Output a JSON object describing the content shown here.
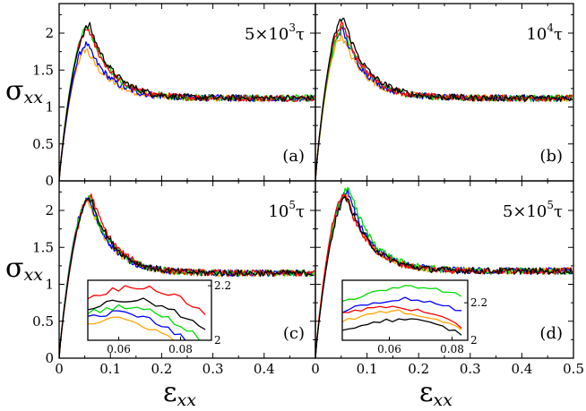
{
  "chart_data": {
    "type": "line",
    "description_free": true,
    "xlabel": "ε",
    "xlabel_sub": "xx",
    "ylabel": "σ",
    "ylabel_sub": "xx",
    "xlim": [
      0,
      0.5
    ],
    "ylim": [
      0,
      2.4
    ],
    "x_ticks": [
      0,
      0.1,
      0.2,
      0.3,
      0.4,
      0.5
    ],
    "x_tick_labels_left": [
      "0",
      "0.1",
      "0.2",
      "0.3",
      "0.4"
    ],
    "x_tick_labels_right": [
      "0",
      "0.1",
      "0.2",
      "0.3",
      "0.4",
      "0.5"
    ],
    "y_ticks": [
      0,
      0.5,
      1,
      1.5,
      2
    ],
    "y_tick_labels": [
      "0",
      "0.5",
      "1",
      "1.5",
      "2"
    ],
    "colors": [
      "#000000",
      "#ff0000",
      "#00dd00",
      "#0000ff",
      "#ffa500"
    ],
    "panels": [
      {
        "id": "a",
        "letter": "(a)",
        "time_main": "5×10",
        "time_sup": "3",
        "time_unit": "τ",
        "peaks": [
          2.1,
          2.05,
          2.08,
          1.85,
          1.78
        ],
        "peak_x": [
          0.06,
          0.058,
          0.057,
          0.055,
          0.054
        ],
        "plateau": 1.12
      },
      {
        "id": "b",
        "letter": "(b)",
        "time_main": "10",
        "time_sup": "4",
        "time_unit": "τ",
        "peaks": [
          2.2,
          2.12,
          2.08,
          2.04,
          1.96
        ],
        "peak_x": [
          0.055,
          0.054,
          0.055,
          0.053,
          0.052
        ],
        "plateau": 1.12
      },
      {
        "id": "c",
        "letter": "(c)",
        "time_main": "10",
        "time_sup": "5",
        "time_unit": "τ",
        "peaks": [
          2.17,
          2.19,
          2.16,
          2.15,
          2.14
        ],
        "peak_x": [
          0.062,
          0.064,
          0.06,
          0.058,
          0.057
        ],
        "plateau": 1.15,
        "inset": {
          "xlim": [
            0.05,
            0.09
          ],
          "ylim": [
            2.0,
            2.22
          ],
          "x_ticks": [
            0.06,
            0.08
          ],
          "x_tick_labels": [
            "0.06",
            "0.08"
          ],
          "y_ticks": [
            2.0,
            2.2
          ],
          "y_tick_labels": [
            "2",
            "2.2"
          ]
        }
      },
      {
        "id": "d",
        "letter": "(d)",
        "time_main": "5×10",
        "time_sup": "5",
        "time_unit": "τ",
        "peaks": [
          2.17,
          2.22,
          2.3,
          2.25,
          2.2
        ],
        "peak_x": [
          0.062,
          0.058,
          0.066,
          0.063,
          0.06
        ],
        "plateau": 1.18,
        "inset": {
          "xlim": [
            0.045,
            0.085
          ],
          "ylim": [
            2.0,
            2.32
          ],
          "x_ticks": [
            0.06,
            0.08
          ],
          "x_tick_labels": [
            "0.06",
            "0.08"
          ],
          "y_ticks": [
            2.0,
            2.2
          ],
          "y_tick_labels": [
            "2",
            "2.2"
          ]
        }
      }
    ]
  }
}
